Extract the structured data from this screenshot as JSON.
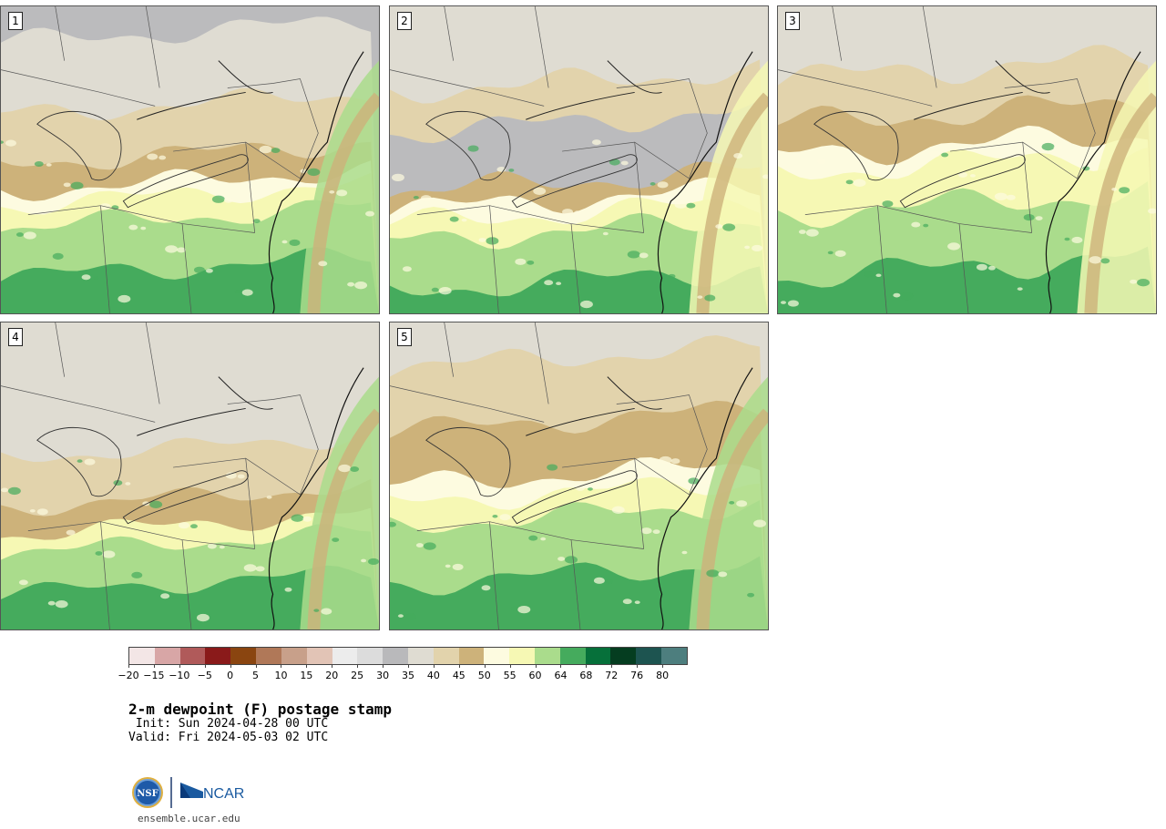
{
  "title": "2-m dewpoint (F) postage stamp",
  "init": " Init: Sun 2024-04-28 00 UTC",
  "valid": "Valid: Fri 2024-05-03 02 UTC",
  "logos": {
    "nsf_text": "NSF",
    "ncar_text": "NCAR"
  },
  "url": "ensemble.ucar.edu",
  "panels": [
    {
      "label": "1"
    },
    {
      "label": "2"
    },
    {
      "label": "3"
    },
    {
      "label": "4"
    },
    {
      "label": "5"
    }
  ],
  "colorbar": {
    "tick_labels": [
      "−20",
      "−15",
      "−10",
      "−5",
      "0",
      "5",
      "10",
      "15",
      "20",
      "25",
      "30",
      "35",
      "40",
      "45",
      "50",
      "55",
      "60",
      "64",
      "68",
      "72",
      "76",
      "80"
    ],
    "colors": [
      "#f3e6e6",
      "#d8a6a6",
      "#b05a5a",
      "#8a1a1a",
      "#8a4510",
      "#b07858",
      "#c8a08a",
      "#e2c4b6",
      "#ececec",
      "#dcdcdc",
      "#b9b9bb",
      "#dfdcd2",
      "#e2d3ac",
      "#cdb27a",
      "#fdfbe0",
      "#f6f8b4",
      "#aadc8c",
      "#45ab5d",
      "#06703a",
      "#053d20",
      "#1d5450",
      "#4d7e7e"
    ]
  },
  "palette": {
    "grey": "#bbbbbd",
    "pale": "#dfdcd2",
    "tan": "#e2d3ac",
    "brown": "#cdb27a",
    "cream": "#fdfbe0",
    "yellow": "#f6f8b4",
    "lightgreen": "#aadc8c",
    "green": "#45ab5d"
  }
}
